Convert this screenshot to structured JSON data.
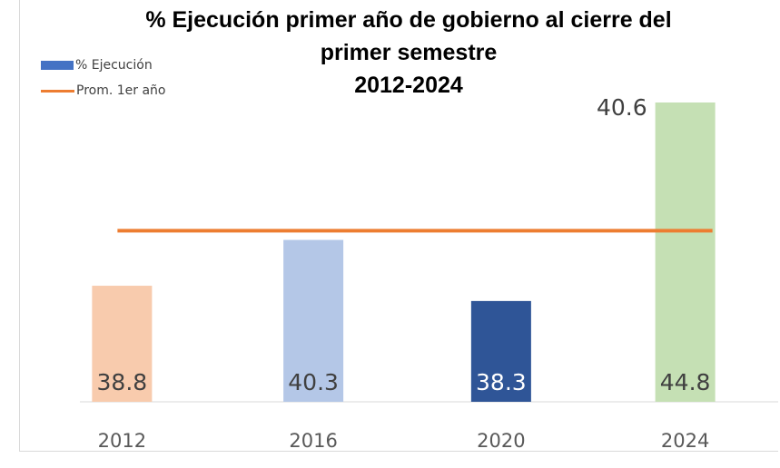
{
  "chart_data": {
    "type": "bar",
    "title_lines": [
      "% Ejecución primer año de gobierno al cierre del",
      "primer semestre",
      "2012-2024"
    ],
    "categories": [
      "2012",
      "2016",
      "2020",
      "2024"
    ],
    "series": [
      {
        "name": "% Ejecución",
        "values": [
          38.8,
          40.3,
          38.3,
          44.8
        ],
        "colors": [
          "#f8cbad",
          "#b4c7e7",
          "#2f5597",
          "#c5e0b4"
        ]
      },
      {
        "name": "Prom. 1er año",
        "type": "line",
        "value": 40.6,
        "color": "#ed7d31"
      }
    ],
    "data_labels": [
      "38.8",
      "40.3",
      "38.3",
      "44.8"
    ],
    "average_label": "40.6",
    "ylim": [
      0,
      44.8
    ],
    "grid": false,
    "legend_position": "top-left"
  }
}
